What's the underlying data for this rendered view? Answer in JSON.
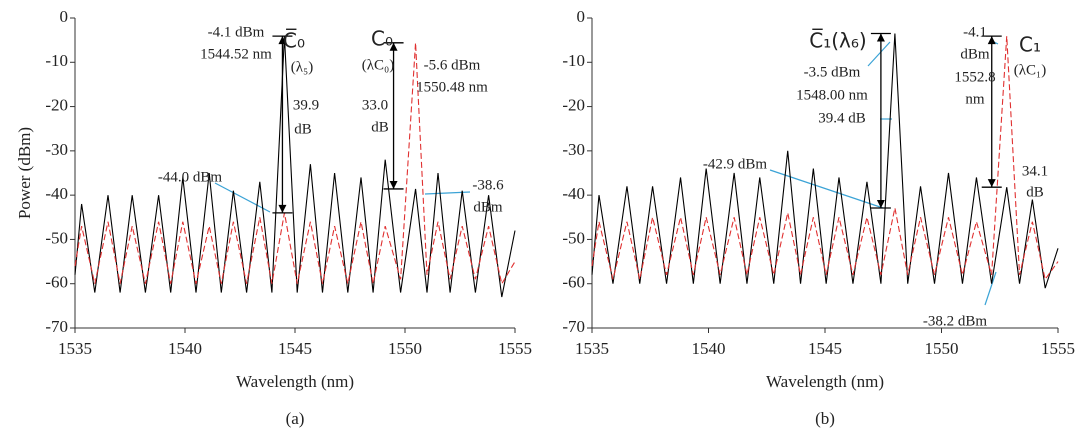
{
  "chart_data": [
    {
      "type": "line",
      "y_label": "Power (dBm)",
      "x_label": "Wavelength (nm)",
      "panel_label": "(a)",
      "xlim": [
        1535,
        1555
      ],
      "ylim": [
        -70,
        0
      ],
      "xticks": [
        1535,
        1540,
        1545,
        1550,
        1555
      ],
      "yticks": [
        0,
        -10,
        -20,
        -30,
        -40,
        -50,
        -60,
        -70
      ],
      "x": [
        1535.0,
        1535.3,
        1535.9,
        1536.5,
        1537.05,
        1537.6,
        1538.2,
        1538.8,
        1539.35,
        1539.9,
        1540.5,
        1541.1,
        1541.65,
        1542.2,
        1542.8,
        1543.4,
        1543.95,
        1544.52,
        1545.1,
        1545.7,
        1546.25,
        1546.8,
        1547.4,
        1548.0,
        1548.55,
        1549.1,
        1549.8,
        1550.48,
        1551.0,
        1551.5,
        1552.05,
        1552.6,
        1553.2,
        1553.8,
        1554.4,
        1555.0
      ],
      "series": [
        {
          "color": "#000000",
          "line_style": "solid",
          "values": [
            -58,
            -42,
            -62,
            -40,
            -62,
            -40,
            -62,
            -40,
            -62,
            -36,
            -62,
            -35,
            -62,
            -39,
            -62,
            -37,
            -62,
            -4.1,
            -62,
            -33,
            -62,
            -35,
            -62,
            -36,
            -62,
            -32,
            -62,
            -38.6,
            -62,
            -35,
            -62,
            -39,
            -62,
            -40,
            -63,
            -48
          ]
        },
        {
          "color": "#e03030",
          "line_style": "dashed",
          "values": [
            -56,
            -47,
            -60,
            -46,
            -60,
            -47,
            -60,
            -46,
            -60,
            -46,
            -60,
            -47,
            -60,
            -46,
            -60,
            -45,
            -60,
            -44.0,
            -60,
            -46,
            -60,
            -47,
            -60,
            -46,
            -60,
            -47,
            -59,
            -5.6,
            -58,
            -46,
            -59,
            -47,
            -59,
            -47,
            -60,
            -55
          ]
        }
      ],
      "annotations": [
        "-4.1 dBm",
        "1544.52 nm",
        "C̅₀",
        "(λ₅)",
        "39.9",
        "dB",
        "-44.0 dBm",
        "C₀",
        "(λC₀)",
        "-5.6 dBm",
        "1550.48 nm",
        "33.0",
        "dB",
        "-38.6",
        "dBm"
      ]
    },
    {
      "type": "line",
      "x_label": "Wavelength (nm)",
      "panel_label": "(b)",
      "xlim": [
        1535,
        1555
      ],
      "ylim": [
        -70,
        0
      ],
      "xticks": [
        1535,
        1540,
        1545,
        1550,
        1555
      ],
      "yticks": [
        0,
        -10,
        -20,
        -30,
        -40,
        -50,
        -60,
        -70
      ],
      "x": [
        1535.0,
        1535.3,
        1535.9,
        1536.5,
        1537.05,
        1537.6,
        1538.2,
        1538.8,
        1539.35,
        1539.9,
        1540.5,
        1541.1,
        1541.65,
        1542.2,
        1542.8,
        1543.4,
        1543.95,
        1544.5,
        1545.05,
        1545.6,
        1546.2,
        1546.8,
        1547.4,
        1548.0,
        1548.55,
        1549.1,
        1549.7,
        1550.3,
        1550.9,
        1551.5,
        1552.15,
        1552.8,
        1553.35,
        1553.9,
        1554.45,
        1555.0
      ],
      "series": [
        {
          "color": "#000000",
          "line_style": "solid",
          "values": [
            -58,
            -40,
            -60,
            -38,
            -60,
            -38,
            -60,
            -36,
            -60,
            -34,
            -60,
            -35,
            -60,
            -36,
            -60,
            -30,
            -60,
            -34,
            -60,
            -36,
            -60,
            -37,
            -60,
            -3.5,
            -60,
            -38,
            -60,
            -35,
            -60,
            -36,
            -60,
            -38.2,
            -60,
            -41,
            -61,
            -52
          ]
        },
        {
          "color": "#e03030",
          "line_style": "dashed",
          "values": [
            -56,
            -46,
            -59,
            -46,
            -59,
            -45,
            -58,
            -45,
            -58,
            -45,
            -58,
            -45,
            -58,
            -45,
            -58,
            -44,
            -58,
            -45,
            -58,
            -45,
            -58,
            -45,
            -58,
            -42.9,
            -58,
            -45,
            -58,
            -45,
            -58,
            -46,
            -58,
            -4.1,
            -58,
            -46,
            -59,
            -55
          ]
        }
      ],
      "annotations": [
        "C̅₁(λ₆)",
        "-3.5 dBm",
        "1548.00 nm",
        "39.4 dB",
        "-42.9 dBm",
        "-4.1",
        "dBm",
        "1552.8",
        "nm",
        "C₁",
        "(λC₁)",
        "34.1",
        "dB",
        "-38.2 dBm"
      ]
    }
  ]
}
